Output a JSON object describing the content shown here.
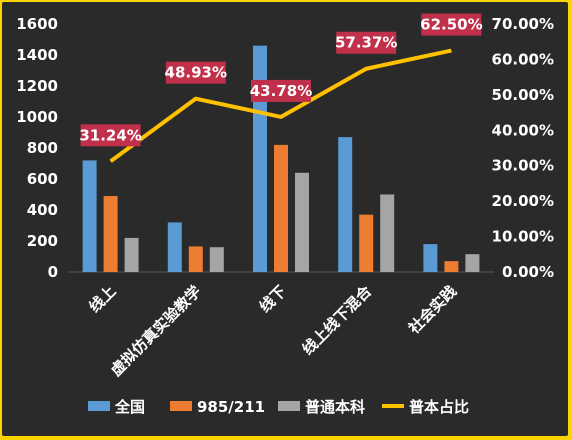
{
  "chart_data": {
    "type": "bar",
    "categories": [
      "线上",
      "虚拟仿真实验教学",
      "线下",
      "线上线下混合",
      "社会实践"
    ],
    "series": [
      {
        "name": "全国",
        "type": "bar",
        "axis": "left",
        "color": "#5b9bd5",
        "values": [
          720,
          320,
          1460,
          870,
          180
        ]
      },
      {
        "name": "985/211",
        "type": "bar",
        "axis": "left",
        "color": "#ed7d31",
        "values": [
          490,
          165,
          820,
          370,
          70
        ]
      },
      {
        "name": "普通本科",
        "type": "bar",
        "axis": "left",
        "color": "#a5a5a5",
        "values": [
          220,
          160,
          640,
          500,
          115
        ]
      },
      {
        "name": "普本占比",
        "type": "line",
        "axis": "right",
        "color": "#ffc000",
        "values": [
          31.24,
          48.93,
          43.78,
          57.37,
          62.5
        ]
      }
    ],
    "data_labels": [
      "31.24%",
      "48.93%",
      "43.78%",
      "57.37%",
      "62.50%"
    ],
    "y_left": {
      "min": 0,
      "max": 1600,
      "ticks": [
        "0",
        "200",
        "400",
        "600",
        "800",
        "1000",
        "1200",
        "1400",
        "1600"
      ]
    },
    "y_right": {
      "min": 0,
      "max": 70,
      "ticks": [
        "0.00%",
        "10.00%",
        "20.00%",
        "30.00%",
        "40.00%",
        "50.00%",
        "60.00%",
        "70.00%"
      ]
    },
    "legend_position": "bottom",
    "grid": false,
    "colors": {
      "background": "#2a2a2a",
      "frame": "#fbd400",
      "label_box": "#c0304a"
    }
  }
}
